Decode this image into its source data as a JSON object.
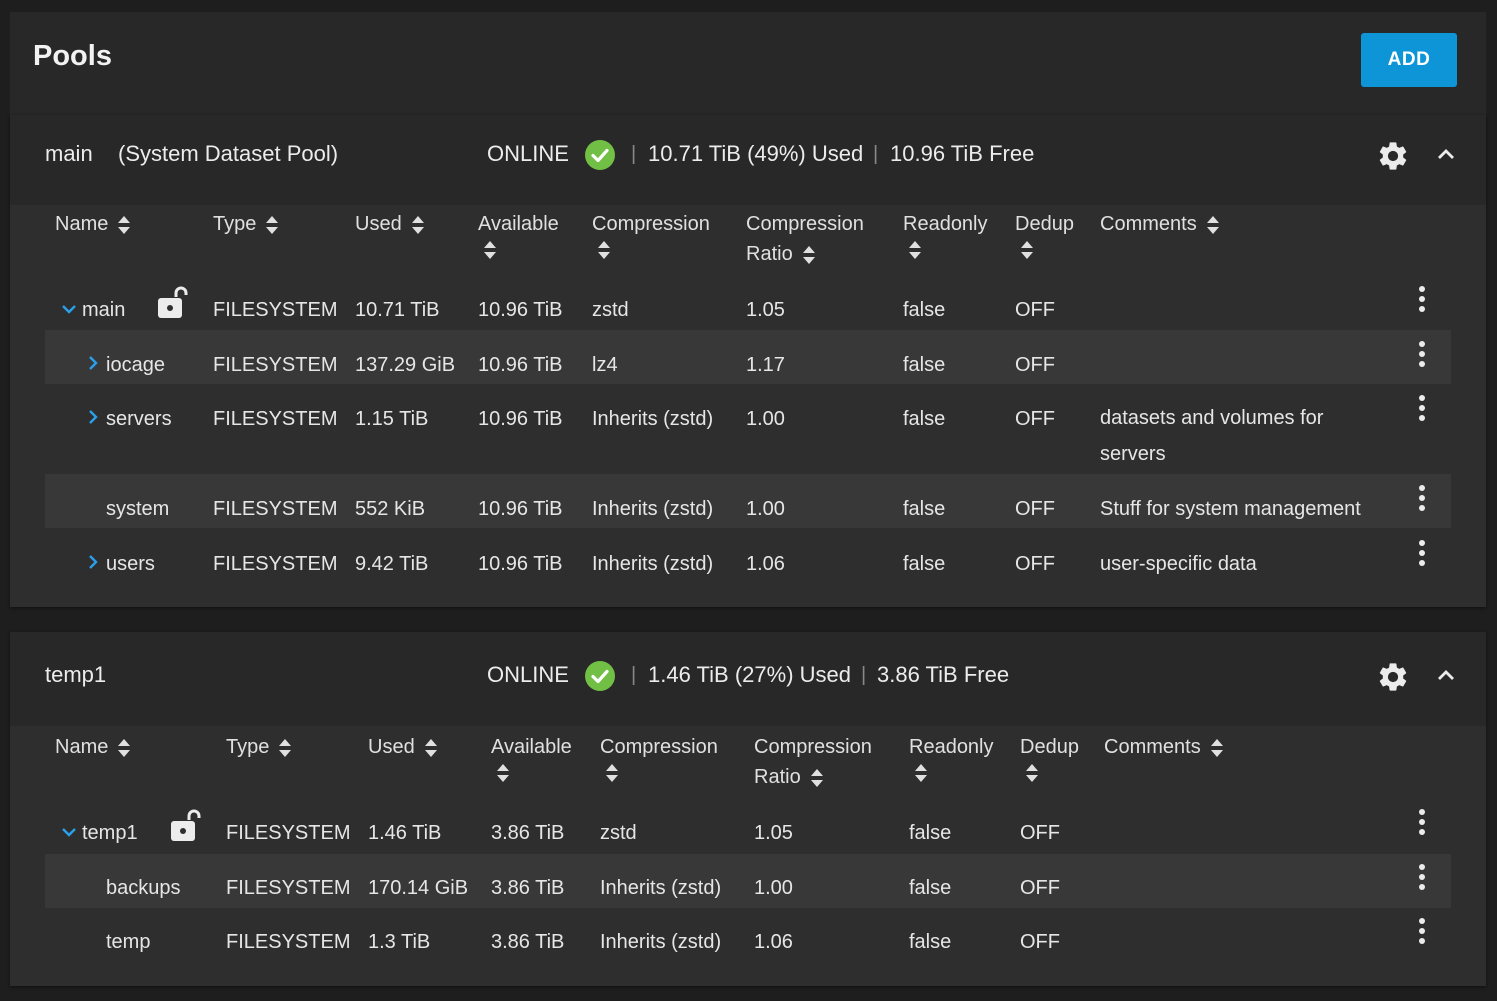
{
  "page": {
    "title": "Pools",
    "add_label": "ADD"
  },
  "colors": {
    "accent": "#0e95d8",
    "online": "#71bf44",
    "row_alt": "#383838"
  },
  "columns": [
    "Name",
    "Type",
    "Used",
    "Available",
    "Compression",
    "Compression Ratio",
    "Readonly",
    "Dedup",
    "Comments"
  ],
  "columns_split": {
    "available": [
      "Available"
    ],
    "compression": [
      "Compression"
    ],
    "ratio": [
      "Compression",
      "Ratio"
    ],
    "readonly": [
      "Readonly"
    ],
    "dedup": [
      "Dedup"
    ]
  },
  "pools": [
    {
      "name": "main",
      "subtitle": "(System Dataset Pool)",
      "status": "ONLINE",
      "used": "10.71 TiB (49%) Used",
      "free": "10.96 TiB Free",
      "rows": [
        {
          "name": "main",
          "type": "FILESYSTEM",
          "used": "10.71 TiB",
          "available": "10.96 TiB",
          "compression": "zstd",
          "ratio": "1.05",
          "readonly": "false",
          "dedup": "OFF",
          "comments": ""
        },
        {
          "name": "iocage",
          "type": "FILESYSTEM",
          "used": "137.29 GiB",
          "available": "10.96 TiB",
          "compression": "lz4",
          "ratio": "1.17",
          "readonly": "false",
          "dedup": "OFF",
          "comments": ""
        },
        {
          "name": "servers",
          "type": "FILESYSTEM",
          "used": "1.15 TiB",
          "available": "10.96 TiB",
          "compression": "Inherits (zstd)",
          "ratio": "1.00",
          "readonly": "false",
          "dedup": "OFF",
          "comments": "datasets and volumes for servers"
        },
        {
          "name": "system",
          "type": "FILESYSTEM",
          "used": "552 KiB",
          "available": "10.96 TiB",
          "compression": "Inherits (zstd)",
          "ratio": "1.00",
          "readonly": "false",
          "dedup": "OFF",
          "comments": "Stuff for system management"
        },
        {
          "name": "users",
          "type": "FILESYSTEM",
          "used": "9.42 TiB",
          "available": "10.96 TiB",
          "compression": "Inherits (zstd)",
          "ratio": "1.06",
          "readonly": "false",
          "dedup": "OFF",
          "comments": "user-specific data"
        }
      ]
    },
    {
      "name": "temp1",
      "status": "ONLINE",
      "used": "1.46 TiB (27%) Used",
      "free": "3.86 TiB Free",
      "rows": [
        {
          "name": "temp1",
          "type": "FILESYSTEM",
          "used": "1.46 TiB",
          "available": "3.86 TiB",
          "compression": "zstd",
          "ratio": "1.05",
          "readonly": "false",
          "dedup": "OFF",
          "comments": ""
        },
        {
          "name": "backups",
          "type": "FILESYSTEM",
          "used": "170.14 GiB",
          "available": "3.86 TiB",
          "compression": "Inherits (zstd)",
          "ratio": "1.00",
          "readonly": "false",
          "dedup": "OFF",
          "comments": ""
        },
        {
          "name": "temp",
          "type": "FILESYSTEM",
          "used": "1.3 TiB",
          "available": "3.86 TiB",
          "compression": "Inherits (zstd)",
          "ratio": "1.06",
          "readonly": "false",
          "dedup": "OFF",
          "comments": ""
        }
      ]
    }
  ]
}
